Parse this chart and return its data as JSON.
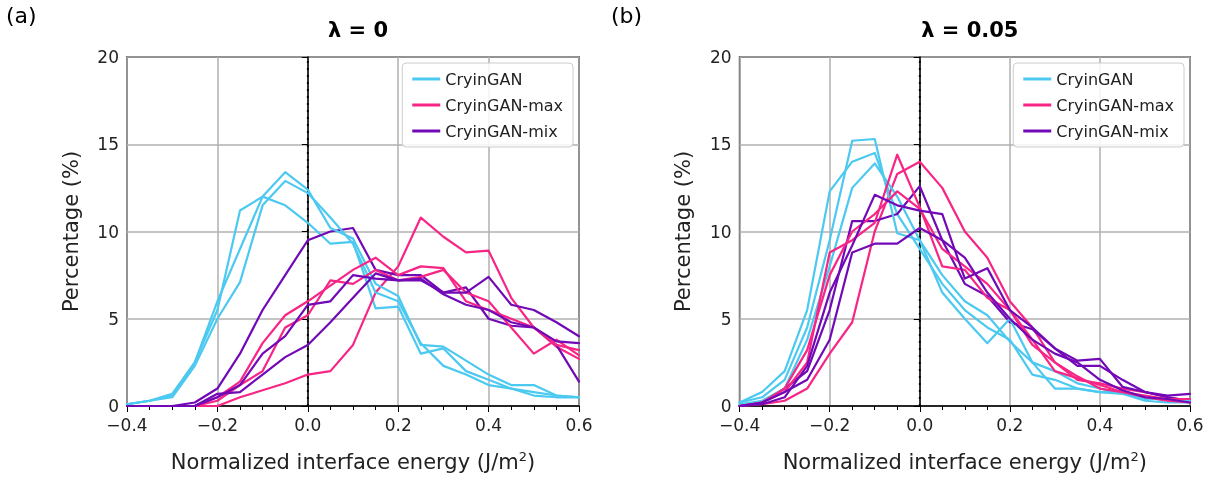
{
  "chart_data": [
    {
      "type": "line",
      "title": "λ = 0",
      "xlabel": "Normalized interface energy (J/m$^{2}$)",
      "ylabel": "Percentage (%)",
      "annotations": [
        "(a)"
      ],
      "xlim": [
        -0.4,
        0.6
      ],
      "xticks": [
        {
          "value": -0.4,
          "label": "−0.4"
        },
        {
          "value": -0.2,
          "label": "−0.2"
        },
        {
          "value": 0,
          "label": "0.0"
        },
        {
          "value": 0.2,
          "label": "0.2"
        },
        {
          "value": 0.4,
          "label": "0.4"
        },
        {
          "value": 0.6,
          "label": "0.6"
        }
      ],
      "ylim": [
        0,
        20
      ],
      "yticks": [
        0,
        5,
        10,
        15,
        20
      ],
      "grid": true,
      "legend": "top right",
      "marker": "none",
      "line_style": "solid",
      "x": [
        -0.4,
        -0.35,
        -0.3,
        -0.25,
        -0.2,
        -0.15,
        -0.1,
        -0.05,
        0,
        0.05,
        0.1,
        0.15,
        0.2,
        0.25,
        0.3,
        0.35,
        0.4,
        0.45,
        0.5,
        0.55,
        0.6
      ],
      "ref_lines": [
        {
          "axis": "x",
          "value": 0,
          "color": "#000000",
          "line_style": "dotted"
        }
      ],
      "series": [
        {
          "name": "CryinGAN",
          "color": "#4cc9f0",
          "values": [
            0.1,
            0.3,
            0.7,
            2.5,
            5.5,
            11.2,
            12,
            11.5,
            10.5,
            9.3,
            9.4,
            5.6,
            5.7,
            3.0,
            3.3,
            2.0,
            1.5,
            1.0,
            0.6,
            0.5,
            0.5
          ]
        },
        {
          "name": "CryinGAN-max",
          "color": "#f72585",
          "values": [
            null,
            null,
            0,
            0,
            0,
            0.5,
            0.9,
            1.3,
            1.8,
            2,
            3.5,
            6.5,
            8,
            10.8,
            9.7,
            8.8,
            8.9,
            6.2,
            4.5,
            3.4,
            2.7
          ]
        },
        {
          "name": "CryinGAN-mix",
          "color": "#7209b7",
          "values": [
            0,
            0,
            0,
            0.2,
            1.0,
            3,
            5.5,
            7.5,
            9.5,
            10.0,
            10.2,
            7.8,
            7.5,
            7.5,
            6.5,
            6.8,
            5.0,
            4.6,
            4.5,
            3.5,
            1.4
          ]
        },
        {
          "color": "#4cc9f0",
          "values": [
            0.1,
            0.3,
            0.6,
            2.5,
            6,
            9,
            12,
            13.4,
            12.4,
            10.2,
            9.6,
            7,
            6.3,
            3.5,
            3.4,
            2.6,
            1.8,
            1.2,
            1.2,
            0.6,
            0.5
          ]
        },
        {
          "color": "#4cc9f0",
          "values": [
            0.1,
            0.3,
            0.5,
            2.3,
            5,
            7.1,
            11.5,
            12.9,
            12.2,
            10.8,
            9.3,
            6.5,
            6,
            3.6,
            2.3,
            1.8,
            1.2,
            1.0,
            0.8,
            0.6,
            0.5
          ]
        },
        {
          "color": "#f72585",
          "values": [
            null,
            null,
            0,
            0,
            0.3,
            1.2,
            2.0,
            4.5,
            5.2,
            7.2,
            7.0,
            7.8,
            7.2,
            7.4,
            7.8,
            6.5,
            6.0,
            4.5,
            3.0,
            3.8,
            2.9
          ]
        },
        {
          "color": "#f72585",
          "values": [
            null,
            null,
            0,
            0,
            0.5,
            1.4,
            3.6,
            5.2,
            6.0,
            6.9,
            7.8,
            8.5,
            7.5,
            8.0,
            7.9,
            6.0,
            5.5,
            5.0,
            4.5,
            3.5,
            3.2
          ]
        },
        {
          "color": "#7209b7",
          "values": [
            0,
            0,
            0,
            0,
            0.5,
            1.2,
            3.0,
            4.0,
            5.8,
            6.0,
            7.5,
            7.3,
            7.2,
            7.3,
            6.4,
            5.8,
            5.5,
            4.8,
            4.5,
            3.7,
            3.6
          ]
        },
        {
          "color": "#7209b7",
          "values": [
            0,
            0,
            0,
            0,
            0.7,
            0.8,
            1.8,
            2.8,
            3.5,
            4.8,
            6.2,
            7.6,
            7.2,
            7.2,
            6.5,
            6.5,
            7.4,
            5.8,
            5.5,
            4.8,
            4.0
          ]
        }
      ]
    },
    {
      "type": "line",
      "title": "λ = 0.05",
      "xlabel": "Normalized interface energy (J/m$^{2}$)",
      "ylabel": "Percentage (%)",
      "annotations": [
        "(b)"
      ],
      "xlim": [
        -0.4,
        0.6
      ],
      "xticks": [
        {
          "value": -0.4,
          "label": "−0.4"
        },
        {
          "value": -0.2,
          "label": "−0.2"
        },
        {
          "value": 0,
          "label": "0.0"
        },
        {
          "value": 0.2,
          "label": "0.2"
        },
        {
          "value": 0.4,
          "label": "0.4"
        },
        {
          "value": 0.6,
          "label": "0.6"
        }
      ],
      "ylim": [
        0,
        20
      ],
      "yticks": [
        0,
        5,
        10,
        15,
        20
      ],
      "grid": true,
      "legend": "top right",
      "marker": "none",
      "line_style": "solid",
      "x": [
        -0.4,
        -0.35,
        -0.3,
        -0.25,
        -0.2,
        -0.15,
        -0.1,
        -0.05,
        0,
        0.05,
        0.1,
        0.15,
        0.2,
        0.25,
        0.3,
        0.35,
        0.4,
        0.45,
        0.5,
        0.55,
        0.6
      ],
      "ref_lines": [
        {
          "axis": "x",
          "value": 0,
          "color": "#000000",
          "line_style": "dotted"
        }
      ],
      "series": [
        {
          "name": "CryinGAN",
          "color": "#4cc9f0",
          "values": [
            0.2,
            0.8,
            2.0,
            5.5,
            12.3,
            14,
            14.5,
            11,
            9,
            7,
            5.5,
            4.5,
            3.8,
            1.8,
            1.5,
            1.0,
            0.8,
            0.8,
            0.4,
            0.4,
            0.3
          ]
        },
        {
          "name": "CryinGAN-max",
          "color": "#f72585",
          "values": [
            0,
            0.1,
            0.3,
            1.0,
            3.0,
            4.8,
            10,
            13.3,
            14,
            12.5,
            10.0,
            8.5,
            6.0,
            4.5,
            2.5,
            1.5,
            1.3,
            1.0,
            0.8,
            0.5,
            0.3
          ]
        },
        {
          "name": "CryinGAN-mix",
          "color": "#7209b7",
          "values": [
            0,
            0.2,
            1.0,
            2.0,
            5.5,
            10.6,
            10.6,
            11.0,
            12.6,
            9.5,
            7.0,
            6.3,
            4.8,
            4.4,
            3.3,
            2.6,
            2.7,
            1.1,
            0.8,
            0.5,
            0.3
          ]
        },
        {
          "color": "#4cc9f0",
          "values": [
            0.2,
            0.5,
            1.5,
            4.5,
            9.5,
            15.2,
            15.3,
            9.9,
            9.5,
            6.5,
            5.0,
            3.6,
            5.0,
            2.5,
            1.0,
            1.0,
            0.8,
            0.7,
            0.5,
            0.3,
            0.3
          ]
        },
        {
          "color": "#4cc9f0",
          "values": [
            0.1,
            0.3,
            1.0,
            3.8,
            8,
            12.5,
            13.9,
            12.0,
            9.5,
            7.5,
            6.0,
            5.2,
            3.7,
            2.5,
            2.0,
            1.3,
            1.0,
            0.7,
            0.3,
            0.2,
            0.2
          ]
        },
        {
          "color": "#f72585",
          "values": [
            0,
            0.2,
            0.8,
            2.5,
            8.8,
            9.5,
            10.5,
            14.4,
            11.4,
            8.0,
            7.8,
            6.2,
            5.5,
            3.5,
            2.5,
            1.7,
            1.0,
            0.8,
            0.5,
            0.3,
            0.2
          ]
        },
        {
          "color": "#f72585",
          "values": [
            0,
            0.2,
            1.0,
            3.2,
            7.5,
            10,
            11.0,
            12.3,
            11.3,
            9.0,
            8.0,
            7.0,
            5.5,
            3.8,
            2.0,
            1.6,
            1.2,
            0.8,
            0.6,
            0.4,
            0.4
          ]
        },
        {
          "color": "#7209b7",
          "values": [
            0,
            0.1,
            0.5,
            2.3,
            6.5,
            9.2,
            12.1,
            11.5,
            11.2,
            11.0,
            7.3,
            7.9,
            5.5,
            4.5,
            3.3,
            2.3,
            2.3,
            1.5,
            0.8,
            0.6,
            0.7
          ]
        },
        {
          "color": "#7209b7",
          "values": [
            0,
            0.2,
            0.8,
            1.5,
            3.8,
            8.8,
            9.3,
            9.3,
            10.2,
            9.5,
            8.5,
            6.5,
            5.0,
            3.8,
            3.0,
            2.5,
            1.5,
            0.9,
            0.5,
            0.4,
            0.2
          ]
        }
      ]
    }
  ]
}
